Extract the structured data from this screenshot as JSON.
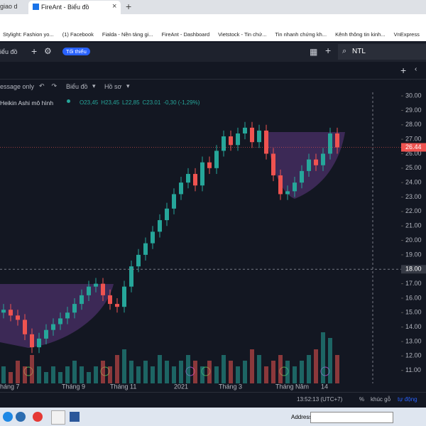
{
  "browser": {
    "tabs": [
      "giao d",
      "FireAnt - Biểu đồ"
    ],
    "bookmarks": [
      "Stylight: Fashion yo...",
      "(1) Facebook",
      "Fialda - Nền tảng gi...",
      "FireAnt - Dashboard",
      "Vietstock - Tin chứ...",
      "Tin nhanh chứng kh...",
      "Kênh thông tin kinh...",
      "VnExpress"
    ]
  },
  "app": {
    "tab_label": "iểu đồ",
    "mode": "Tối thiểu",
    "symbol": "NTL",
    "toolbar": [
      "essage only",
      "Biểu đồ",
      "Hồ sơ"
    ],
    "legend": {
      "title": "Heikin Ashi mô hình",
      "open": "O23,45",
      "high": "H23,45",
      "low": "L22,85",
      "close": "C23.01",
      "change": "-0,30 (-1,29%)"
    },
    "status": {
      "time": "13:52:13 (UTC+7)",
      "percent": "%",
      "log": "khúc gỗ",
      "auto": "tự động"
    },
    "taskbar": {
      "address": "Address"
    }
  },
  "chart_data": {
    "type": "candlestick",
    "open": [
      15.0,
      15.2,
      14.8,
      14.5,
      13.5,
      12.6,
      13.2,
      13.8,
      14.2,
      14.6,
      15.0,
      15.6,
      16.2,
      16.8,
      17.0,
      16.2,
      15.6,
      15.4,
      16.8,
      18.2,
      19.0,
      19.8,
      20.6,
      21.4,
      22.2,
      23.2,
      24.0,
      24.6,
      23.8,
      25.4,
      25.0,
      26.2,
      27.2,
      26.6,
      27.4,
      27.8,
      26.8,
      27.6,
      26.0,
      24.5,
      23.2,
      23.4,
      24.0,
      24.8,
      25.6,
      25.2,
      26.0,
      27.4
    ],
    "high": [
      15.6,
      15.6,
      15.2,
      14.9,
      13.9,
      13.6,
      14.2,
      14.6,
      15.0,
      15.4,
      16.0,
      16.6,
      17.2,
      17.4,
      17.4,
      16.6,
      16.0,
      17.2,
      18.6,
      19.4,
      20.2,
      21.0,
      21.8,
      22.6,
      23.6,
      24.4,
      25.0,
      25.0,
      25.8,
      25.8,
      26.6,
      27.6,
      27.6,
      27.8,
      28.2,
      28.2,
      28.0,
      28.0,
      26.4,
      24.9,
      23.8,
      24.4,
      25.2,
      26.0,
      26.0,
      26.4,
      27.8,
      27.8
    ],
    "low": [
      14.6,
      14.4,
      14.1,
      13.1,
      12.2,
      12.2,
      12.8,
      13.4,
      13.8,
      14.2,
      14.6,
      15.2,
      15.8,
      16.4,
      15.8,
      15.2,
      15.0,
      15.0,
      16.4,
      17.8,
      18.6,
      19.4,
      20.2,
      21.0,
      21.8,
      22.8,
      23.6,
      23.4,
      23.4,
      24.6,
      24.6,
      25.8,
      26.2,
      26.2,
      27.0,
      26.4,
      26.4,
      25.6,
      24.1,
      22.8,
      22.8,
      23.0,
      23.6,
      24.4,
      24.8,
      24.8,
      25.6,
      26.0
    ],
    "close": [
      15.2,
      14.8,
      14.5,
      13.5,
      12.6,
      13.2,
      13.8,
      14.2,
      14.6,
      15.0,
      15.6,
      16.2,
      16.8,
      17.0,
      16.2,
      15.6,
      15.4,
      16.8,
      18.2,
      19.0,
      19.8,
      20.6,
      21.4,
      22.2,
      23.2,
      24.0,
      24.6,
      23.8,
      25.4,
      25.0,
      26.2,
      27.2,
      26.6,
      27.4,
      27.8,
      26.8,
      27.6,
      26.0,
      24.5,
      23.2,
      23.4,
      24.0,
      24.8,
      25.6,
      25.2,
      26.0,
      27.4,
      26.44
    ],
    "volume": [
      3,
      2,
      4,
      3,
      5,
      3,
      2,
      3,
      2,
      3,
      4,
      3,
      2,
      3,
      4,
      3,
      5,
      6,
      4,
      3,
      4,
      3,
      5,
      4,
      3,
      4,
      5,
      4,
      3,
      4,
      3,
      5,
      4,
      3,
      4,
      6,
      5,
      3,
      4,
      5,
      4,
      3,
      4,
      5,
      6,
      9,
      8,
      5
    ],
    "up_color": "#26a69a",
    "down_color": "#ef5350",
    "ylim": [
      10.1,
      30.25
    ],
    "yticks": [
      {
        "value": 30,
        "label": "30.00"
      },
      {
        "value": 29,
        "label": "29.00"
      },
      {
        "value": 28,
        "label": "28.00"
      },
      {
        "value": 27,
        "label": "27.00"
      },
      {
        "value": 26,
        "label": "26.00"
      },
      {
        "value": 25,
        "label": "25.00"
      },
      {
        "value": 24,
        "label": "24.00"
      },
      {
        "value": 23,
        "label": "23.00"
      },
      {
        "value": 22,
        "label": "22.00"
      },
      {
        "value": 21,
        "label": "21.00"
      },
      {
        "value": 20,
        "label": "20.00"
      },
      {
        "value": 19,
        "label": "19.00"
      },
      {
        "value": 18,
        "label": "18.00"
      },
      {
        "value": 17,
        "label": "17.00"
      },
      {
        "value": 16,
        "label": "16.00"
      },
      {
        "value": 15,
        "label": "15.00"
      },
      {
        "value": 14,
        "label": "14.00"
      },
      {
        "value": 13,
        "label": "13.00"
      },
      {
        "value": 12,
        "label": "12.00"
      },
      {
        "value": 11,
        "label": "11.00"
      }
    ],
    "crosshair": {
      "value": 18,
      "label": "18.00"
    },
    "last_price": {
      "value": 26.44,
      "label": "26.44"
    },
    "x_labels": [
      "háng 7",
      "Tháng 9",
      "Tháng 11",
      "2021",
      "Tháng 3",
      "Tháng Năm",
      "14"
    ]
  }
}
